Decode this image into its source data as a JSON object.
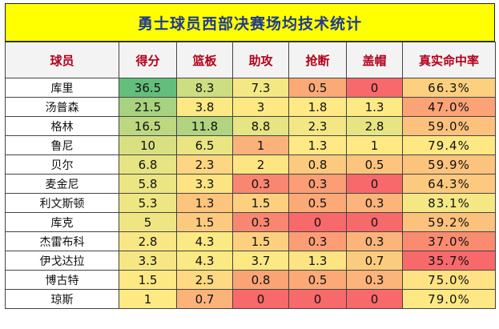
{
  "title": "勇士球员西部决赛场均技术统计",
  "columns": [
    "球员",
    "得分",
    "篮板",
    "助攻",
    "抢断",
    "盖帽",
    "真实命中率"
  ],
  "rows": [
    {
      "name": "库里",
      "cells": [
        {
          "v": "36.5",
          "bg": "#63be7b"
        },
        {
          "v": "8.3",
          "bg": "#cddd82"
        },
        {
          "v": "7.3",
          "bg": "#f3e884"
        },
        {
          "v": "0.5",
          "bg": "#fba977"
        },
        {
          "v": "0",
          "bg": "#f8696b"
        },
        {
          "v": "66.3%",
          "bg": "#fcd07f"
        }
      ]
    },
    {
      "name": "汤普森",
      "cells": [
        {
          "v": "21.5",
          "bg": "#a7d27f"
        },
        {
          "v": "3.8",
          "bg": "#fde983"
        },
        {
          "v": "3",
          "bg": "#fde983"
        },
        {
          "v": "1.8",
          "bg": "#ffe984"
        },
        {
          "v": "1.3",
          "bg": "#ffe984"
        },
        {
          "v": "47.0%",
          "bg": "#fba276"
        }
      ]
    },
    {
      "name": "格林",
      "cells": [
        {
          "v": "16.5",
          "bg": "#bcd881"
        },
        {
          "v": "11.8",
          "bg": "#b0d47f"
        },
        {
          "v": "8.8",
          "bg": "#e6e483"
        },
        {
          "v": "2.3",
          "bg": "#f2e784"
        },
        {
          "v": "2.8",
          "bg": "#e6e483"
        },
        {
          "v": "59.0%",
          "bg": "#fcc17c"
        }
      ]
    },
    {
      "name": "鲁尼",
      "cells": [
        {
          "v": "10",
          "bg": "#d9e082"
        },
        {
          "v": "6.5",
          "bg": "#e9e583"
        },
        {
          "v": "1",
          "bg": "#fbb27a"
        },
        {
          "v": "1.3",
          "bg": "#ffe984"
        },
        {
          "v": "1",
          "bg": "#ffe984"
        },
        {
          "v": "79.4%",
          "bg": "#fee883"
        }
      ]
    },
    {
      "name": "贝尔",
      "cells": [
        {
          "v": "6.8",
          "bg": "#e6e483"
        },
        {
          "v": "2.3",
          "bg": "#fed580"
        },
        {
          "v": "2",
          "bg": "#fde582"
        },
        {
          "v": "0.8",
          "bg": "#fcca7e"
        },
        {
          "v": "0.5",
          "bg": "#fcc47d"
        },
        {
          "v": "59.9%",
          "bg": "#fcc37d"
        }
      ]
    },
    {
      "name": "麦金尼",
      "cells": [
        {
          "v": "5.8",
          "bg": "#ebe583"
        },
        {
          "v": "3.3",
          "bg": "#fee383"
        },
        {
          "v": "0.3",
          "bg": "#f98670"
        },
        {
          "v": "0.3",
          "bg": "#fb9d75"
        },
        {
          "v": "0",
          "bg": "#f8696b"
        },
        {
          "v": "64.3%",
          "bg": "#fcc97e"
        }
      ]
    },
    {
      "name": "利文斯顿",
      "cells": [
        {
          "v": "5.3",
          "bg": "#eee683"
        },
        {
          "v": "1.3",
          "bg": "#fcc47d"
        },
        {
          "v": "1.5",
          "bg": "#fcd07f"
        },
        {
          "v": "0.5",
          "bg": "#fba977"
        },
        {
          "v": "0.3",
          "bg": "#fbb47a"
        },
        {
          "v": "83.1%",
          "bg": "#f5e884"
        }
      ]
    },
    {
      "name": "库克",
      "cells": [
        {
          "v": "5",
          "bg": "#efe683"
        },
        {
          "v": "1.5",
          "bg": "#fcca7e"
        },
        {
          "v": "0.3",
          "bg": "#f98670"
        },
        {
          "v": "0",
          "bg": "#f8696b"
        },
        {
          "v": "0",
          "bg": "#f8696b"
        },
        {
          "v": "59.2%",
          "bg": "#fcc17c"
        }
      ]
    },
    {
      "name": "杰雷布科",
      "cells": [
        {
          "v": "2.8",
          "bg": "#f8e784"
        },
        {
          "v": "4.3",
          "bg": "#fbe983"
        },
        {
          "v": "1.5",
          "bg": "#fcd07f"
        },
        {
          "v": "0.3",
          "bg": "#fb9d75"
        },
        {
          "v": "0.3",
          "bg": "#fbb47a"
        },
        {
          "v": "37.0%",
          "bg": "#f98b71"
        }
      ]
    },
    {
      "name": "伊戈达拉",
      "cells": [
        {
          "v": "3.3",
          "bg": "#f6e784"
        },
        {
          "v": "4.3",
          "bg": "#fbe983"
        },
        {
          "v": "3.7",
          "bg": "#fde983"
        },
        {
          "v": "1.3",
          "bg": "#fde482"
        },
        {
          "v": "0.7",
          "bg": "#fccc7e"
        },
        {
          "v": "35.7%",
          "bg": "#f8696b"
        }
      ]
    },
    {
      "name": "博古特",
      "cells": [
        {
          "v": "1.5",
          "bg": "#fde983"
        },
        {
          "v": "2.5",
          "bg": "#fed981"
        },
        {
          "v": "0.8",
          "bg": "#faa476"
        },
        {
          "v": "0.5",
          "bg": "#fba977"
        },
        {
          "v": "0.3",
          "bg": "#fbb47a"
        },
        {
          "v": "75.0%",
          "bg": "#fee283"
        }
      ]
    },
    {
      "name": "琼斯",
      "cells": [
        {
          "v": "1",
          "bg": "#fee983"
        },
        {
          "v": "0.7",
          "bg": "#fbb37a"
        },
        {
          "v": "0",
          "bg": "#f8696b"
        },
        {
          "v": "0",
          "bg": "#f8696b"
        },
        {
          "v": "0",
          "bg": "#f8696b"
        },
        {
          "v": "79.0%",
          "bg": "#fee883"
        }
      ]
    }
  ]
}
